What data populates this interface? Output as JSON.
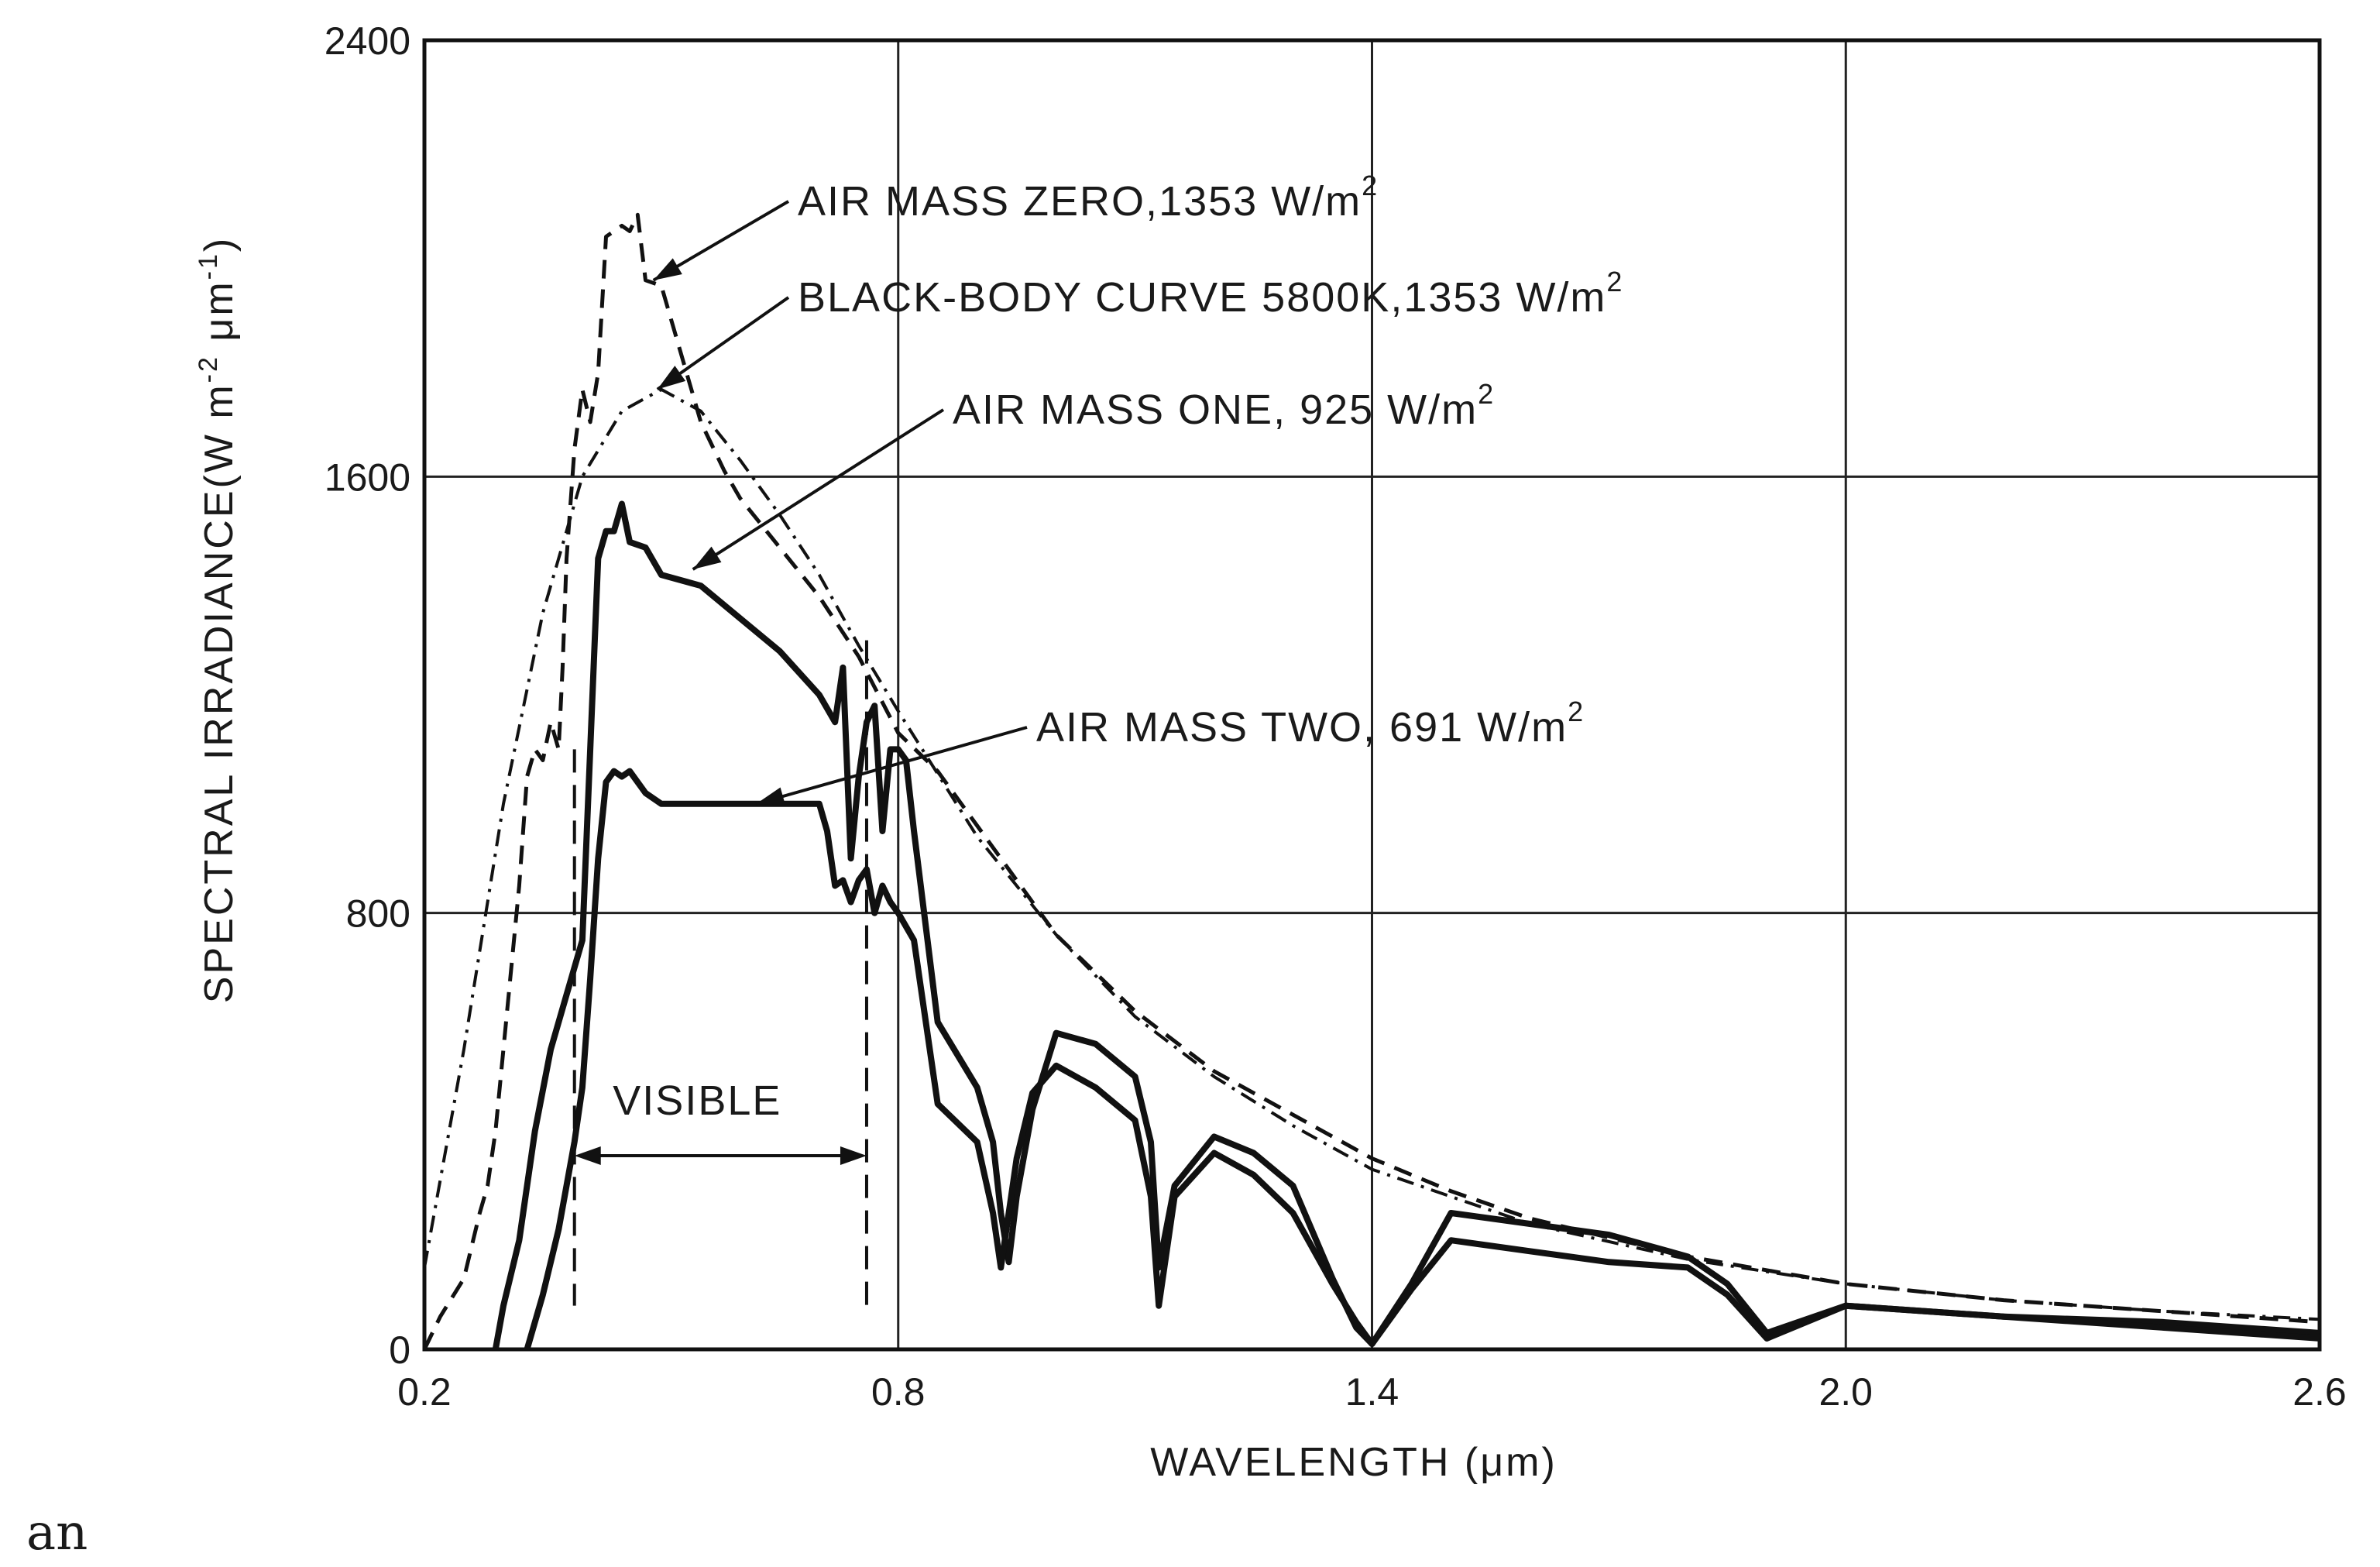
{
  "chart_data": {
    "type": "line",
    "xlabel": "WAVELENGTH (μm)",
    "ylabel_parts": [
      "SPECTRAL IRRADIANCE(W m",
      "-2",
      " μm",
      "-1",
      ")"
    ],
    "xlim": [
      0.2,
      2.6
    ],
    "ylim": [
      0,
      2400
    ],
    "x_ticks": [
      0.2,
      0.8,
      1.4,
      2.0,
      2.6
    ],
    "x_tick_labels": [
      "0.2",
      "0.8",
      "1.4",
      "2.0",
      "2.6"
    ],
    "y_ticks": [
      0,
      800,
      1600,
      2400
    ],
    "y_tick_labels": [
      "0",
      "800",
      "1600",
      "2400"
    ],
    "grid": true,
    "series": [
      {
        "name": "AIR MASS ZERO",
        "label": "AIR MASS ZERO, 1353 W/m",
        "style": "dashed",
        "x": [
          0.2,
          0.22,
          0.25,
          0.27,
          0.28,
          0.29,
          0.3,
          0.31,
          0.32,
          0.33,
          0.34,
          0.35,
          0.36,
          0.37,
          0.375,
          0.38,
          0.39,
          0.4,
          0.41,
          0.42,
          0.43,
          0.44,
          0.45,
          0.46,
          0.47,
          0.48,
          0.5,
          0.52,
          0.55,
          0.58,
          0.6,
          0.65,
          0.7,
          0.75,
          0.8,
          0.85,
          0.9,
          0.95,
          1.0,
          1.1,
          1.2,
          1.3,
          1.4,
          1.5,
          1.6,
          1.8,
          2.0,
          2.2,
          2.4,
          2.6
        ],
        "y": [
          0,
          60,
          130,
          250,
          300,
          400,
          550,
          700,
          850,
          1050,
          1100,
          1080,
          1150,
          1100,
          1250,
          1450,
          1650,
          1760,
          1700,
          1790,
          2040,
          2050,
          2060,
          2050,
          2080,
          1960,
          1950,
          1850,
          1700,
          1610,
          1560,
          1470,
          1380,
          1270,
          1130,
          1060,
          960,
          860,
          760,
          620,
          510,
          430,
          350,
          290,
          240,
          170,
          120,
          90,
          70,
          50
        ]
      },
      {
        "name": "BLACK-BODY CURVE",
        "label": "BLACK-BODY CURVE 5800K, 1353 W/m",
        "style": "dashdot",
        "x": [
          0.2,
          0.25,
          0.3,
          0.35,
          0.4,
          0.45,
          0.5,
          0.55,
          0.6,
          0.65,
          0.7,
          0.75,
          0.8,
          0.9,
          1.0,
          1.1,
          1.2,
          1.3,
          1.4,
          1.6,
          1.8,
          2.0,
          2.2,
          2.4,
          2.6
        ],
        "y": [
          150,
          550,
          1000,
          1350,
          1600,
          1720,
          1760,
          1720,
          1630,
          1530,
          1420,
          1290,
          1170,
          940,
          760,
          610,
          500,
          410,
          330,
          230,
          165,
          120,
          90,
          70,
          55
        ]
      },
      {
        "name": "AIR MASS ONE",
        "label": "AIR MASS ONE, 925 W/m",
        "style": "solid",
        "x": [
          0.29,
          0.3,
          0.32,
          0.34,
          0.36,
          0.38,
          0.4,
          0.41,
          0.42,
          0.43,
          0.44,
          0.45,
          0.46,
          0.48,
          0.5,
          0.55,
          0.6,
          0.65,
          0.7,
          0.72,
          0.73,
          0.74,
          0.75,
          0.76,
          0.77,
          0.78,
          0.79,
          0.8,
          0.81,
          0.82,
          0.85,
          0.9,
          0.92,
          0.93,
          0.94,
          0.95,
          0.97,
          1.0,
          1.05,
          1.1,
          1.12,
          1.13,
          1.15,
          1.2,
          1.25,
          1.3,
          1.35,
          1.38,
          1.4,
          1.45,
          1.5,
          1.6,
          1.7,
          1.8,
          1.85,
          1.9,
          2.0,
          2.1,
          2.2,
          2.4,
          2.6
        ],
        "y": [
          0,
          80,
          200,
          400,
          550,
          650,
          750,
          1100,
          1450,
          1500,
          1500,
          1550,
          1480,
          1470,
          1420,
          1400,
          1340,
          1280,
          1200,
          1150,
          1250,
          900,
          1050,
          1150,
          1180,
          950,
          1100,
          1100,
          1080,
          950,
          600,
          480,
          380,
          250,
          160,
          280,
          440,
          580,
          560,
          500,
          380,
          150,
          300,
          390,
          360,
          300,
          130,
          40,
          10,
          120,
          250,
          230,
          210,
          170,
          120,
          30,
          80,
          70,
          60,
          50,
          30
        ]
      },
      {
        "name": "AIR MASS TWO",
        "label": "AIR MASS TWO, 691 W/m",
        "style": "solid",
        "x": [
          0.33,
          0.35,
          0.37,
          0.38,
          0.39,
          0.4,
          0.41,
          0.42,
          0.43,
          0.44,
          0.45,
          0.46,
          0.48,
          0.5,
          0.55,
          0.6,
          0.65,
          0.7,
          0.71,
          0.72,
          0.73,
          0.74,
          0.75,
          0.76,
          0.77,
          0.78,
          0.79,
          0.8,
          0.82,
          0.85,
          0.9,
          0.92,
          0.93,
          0.95,
          0.97,
          1.0,
          1.05,
          1.1,
          1.12,
          1.13,
          1.15,
          1.2,
          1.25,
          1.3,
          1.35,
          1.38,
          1.4,
          1.45,
          1.5,
          1.6,
          1.7,
          1.8,
          1.85,
          1.9,
          2.0,
          2.1,
          2.2,
          2.4,
          2.6
        ],
        "y": [
          0,
          100,
          220,
          300,
          380,
          480,
          680,
          900,
          1040,
          1060,
          1050,
          1060,
          1020,
          1000,
          1000,
          1000,
          1000,
          1000,
          950,
          850,
          860,
          820,
          860,
          880,
          800,
          850,
          820,
          800,
          750,
          450,
          380,
          250,
          150,
          350,
          470,
          520,
          480,
          420,
          280,
          80,
          280,
          360,
          320,
          250,
          120,
          50,
          10,
          110,
          200,
          180,
          160,
          150,
          100,
          20,
          80,
          70,
          60,
          40,
          20
        ]
      }
    ],
    "annotations": [
      {
        "text": "AIR MASS ZERO,1353  W/m",
        "sup": "2"
      },
      {
        "text": "BLACK-BODY CURVE 5800K,1353 W/m",
        "sup": "2"
      },
      {
        "text": "AIR MASS ONE, 925 W/m",
        "sup": "2"
      },
      {
        "text": "AIR MASS TWO, 691 W/m",
        "sup": "2"
      },
      {
        "text": "VISIBLE",
        "range": [
          0.39,
          0.76
        ]
      }
    ]
  },
  "caption": "an"
}
